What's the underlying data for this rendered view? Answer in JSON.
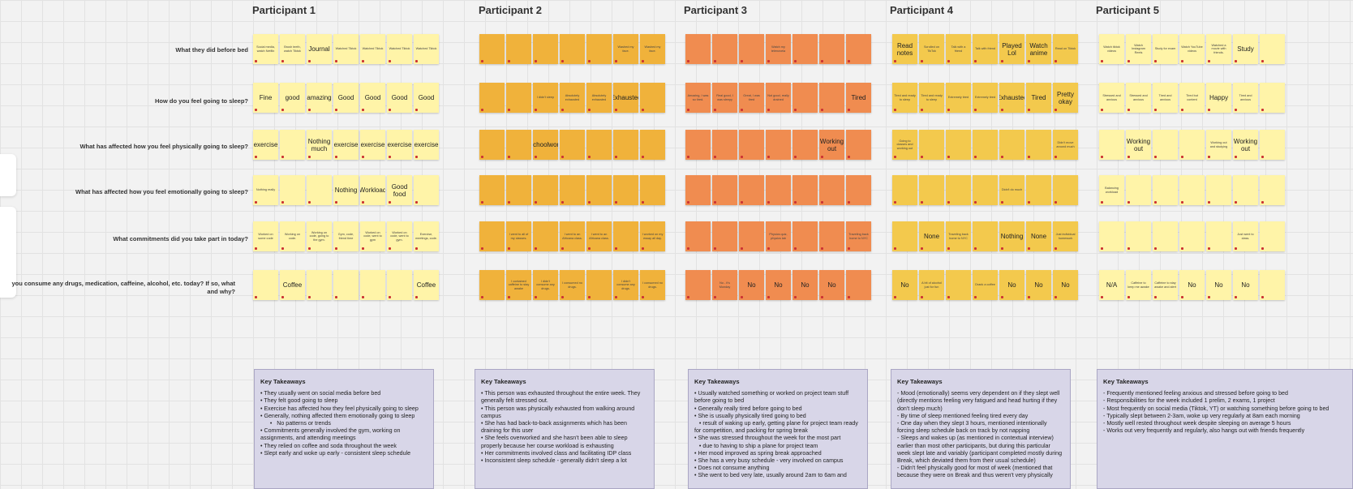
{
  "colors": {
    "p1": "#fff4a8",
    "p2": "#f0b23b",
    "p3": "#f08c50",
    "p4": "#f3c94d",
    "p5": "#fff4a8",
    "takeaway_bg": "#d8d6e8"
  },
  "participants": [
    "Participant 1",
    "Participant 2",
    "Participant 3",
    "Participant 4",
    "Participant 5"
  ],
  "questions": [
    "What they did before bed",
    "How do you feel going to sleep?",
    "What has affected how you feel physically going to sleep?",
    "What has affected how you feel emotionally going to sleep?",
    "What commitments did you take part in today?",
    "you consume any drugs, medication, caffeine, alcohol, etc. today? If so, what and why?"
  ],
  "grid": [
    [
      [
        "Social media, watch Netflix",
        "Brush teeth, watch Tiktok",
        "Journal",
        "Watched Tiktok",
        "Watched Tiktok",
        "Watched Tiktok",
        "Watched Tiktok"
      ],
      [
        "",
        "",
        "",
        "",
        "",
        "Washed my face.",
        "Washed my face."
      ],
      [
        "",
        "",
        "",
        "Watch my telenovela",
        "",
        "",
        ""
      ],
      [
        "Read notes",
        "Scrolled on TikTok",
        "Talk with a friend",
        "Talk with friend",
        "Played Lol",
        "Watch anime",
        "Read on Tiktok"
      ],
      [
        "Watch tiktok videos",
        "Watch Instagram Reels",
        "Study for exam",
        "Watch YouTube videos",
        "Watched a movie with friends.",
        "Study",
        ""
      ]
    ],
    [
      [
        "Fine",
        "good",
        "amazing",
        "Good",
        "Good",
        "Good",
        "Good"
      ],
      [
        "",
        "",
        "I didn't sleep",
        "Absolutely exhausted",
        "Absolutely exhausted",
        "Exhausted",
        ""
      ],
      [
        "Amazing, I was so tired.",
        "Real good, I was sleepy",
        "Great, I was tired",
        "Not good, really drained",
        "",
        "",
        "Tired"
      ],
      [
        "Tired and ready to sleep",
        "Tired and ready to sleep",
        "Extremely tired",
        "Extremely tired",
        "Exhausted",
        "Tired",
        "Pretty okay"
      ],
      [
        "Stressed and anxious",
        "Stressed and anxious",
        "Tired and anxious",
        "Tired but content",
        "Happy",
        "Tired and anxious",
        ""
      ]
    ],
    [
      [
        "exercise",
        "",
        "Nothing much",
        "exercise",
        "exercise",
        "exercise",
        "exercise"
      ],
      [
        "",
        "",
        "Schoolwork",
        "",
        "",
        "",
        ""
      ],
      [
        "",
        "",
        "",
        "",
        "",
        "Working out",
        ""
      ],
      [
        "Going to classes and working out",
        "",
        "",
        "",
        "",
        "",
        "Didn't move around much"
      ],
      [
        "",
        "Working out",
        "",
        "",
        "Working out and studying",
        "Working out",
        ""
      ]
    ],
    [
      [
        "Nothing really",
        "",
        "",
        "Nothing",
        "Workload",
        "Good food",
        ""
      ],
      [
        "",
        "",
        "",
        "",
        "",
        "",
        ""
      ],
      [
        "",
        "",
        "",
        "",
        "",
        "",
        ""
      ],
      [
        "",
        "",
        "",
        "",
        "Didn't do much",
        "",
        ""
      ],
      [
        "Balancing workload",
        "",
        "",
        "",
        "",
        "",
        ""
      ]
    ],
    [
      [
        "Worked on some code",
        "Working on code.",
        "Working on code, going to the gym.",
        "Gym, code, friend time",
        "Worked on code, went to gym",
        "Worked on code, went to gym.",
        "Exercise, meetings, code."
      ],
      [
        "",
        "I went to all of my classes.",
        "",
        "I went to an Africana class.",
        "I went to an Africana class.",
        "",
        "I worked on my essay all day."
      ],
      [
        "",
        "",
        "",
        "Physics quiz, physics lab",
        "",
        "",
        "Traveling back home to NYC"
      ],
      [
        "",
        "None",
        "Traveling back home to NYC",
        "",
        "Nothing",
        "None",
        "Just individual homework"
      ],
      [
        "",
        "",
        "",
        "",
        "",
        "Just went to class.",
        ""
      ]
    ],
    [
      [
        "",
        "Coffee",
        "",
        "",
        "",
        "",
        "Coffee"
      ],
      [
        "",
        "I contained caffeine to stay awake",
        "I didn't consume any drugs.",
        "I consumed no drugs.",
        "",
        "I didn't consume any drugs.",
        "I consumed no drugs."
      ],
      [
        "",
        "No - it's Monday",
        "No",
        "No",
        "No",
        "No",
        ""
      ],
      [
        "No",
        "A bit of alcohol just for fun",
        "",
        "Drank a coffee",
        "No",
        "No",
        "No"
      ],
      [
        "N/A",
        "Caffeine to keep me awake",
        "Caffeine to stay awake and alert",
        "No",
        "No",
        "No",
        ""
      ]
    ]
  ],
  "takeaways": [
    {
      "title": "Key Takeaways",
      "lines": [
        "• They usually went on social media before bed",
        "• They felt good going to sleep",
        "• Exercise has affected how they feel physically going to sleep",
        "• Generally, nothing affected them emotionally going to sleep",
        "      •   No patterns or trends",
        "• Commitments generally involved the gym, working on assignments, and attending meetings",
        "• They relied on coffee and soda throughout the week",
        "• Slept early and woke up early - consistent sleep schedule"
      ]
    },
    {
      "title": "Key Takeaways",
      "lines": [
        "• This person was exhausted throughout the entire week. They generally felt stressed out.",
        "• This person was physically exhausted from walking around campus",
        "• She has had back-to-back assignments which has been draining for this user",
        "• She feels overworked and she hasn't been able to sleep properly because her course workload is exhausting",
        "• Her commitments involved class and facilitating IDP class",
        "• Inconsistent sleep schedule - generally didn't sleep a lot"
      ]
    },
    {
      "title": "Key Takeaways",
      "lines": [
        "• Usually watched something or worked on project team stuff before going to bed",
        "• Generally really tired before going to bed",
        "• She is usually physically tired going to bed",
        "   • result of waking up early, getting plane for project team ready for competition, and packing for spring break",
        "• She was stressed throughout the week for the most part",
        "   • due to having to ship a plane for project team",
        "• Her mood improved as spring break approached",
        "• She has a very busy schedule - very involved on campus",
        "• Does not consume anything",
        "• She went to bed very late, usually around 2am to 6am and"
      ]
    },
    {
      "title": "Key Takeaways",
      "lines": [
        "- Mood (emotionally) seems very dependent on if they slept well (directly mentions feeling very fatigued and head hurting if they don't sleep much)",
        "- By time of sleep mentioned feeling tired every day",
        "- One day when they slept 3 hours, mentioned intentionally forcing sleep schedule back on track by not napping",
        "- Sleeps and wakes up (as mentioned in contextual interview) earlier than most other participants, but during this particular week slept late and variably (participant completed mostly during Break, which deviated them from their usual schedule)",
        "- Didn't feel physically good for most of week (mentioned that because they were on Break and thus weren't very physically"
      ]
    },
    {
      "title": "Key Takeaways",
      "lines": [
        "- Frequently mentioned feeling anxious and stressed before going to bed",
        "- Responsibilities for the week included 1 prelim, 2 exams, 1 project",
        "- Most frequently on social media (Tiktok, YT) or watching something before going to bed",
        "- Typically slept between 2-3am, woke up very regularly at 8am each morning",
        "- Mostly well rested throughout week despite sleeping on average 5 hours",
        "- Works out very frequently and regularly, also hangs out with friends frequently"
      ]
    }
  ]
}
